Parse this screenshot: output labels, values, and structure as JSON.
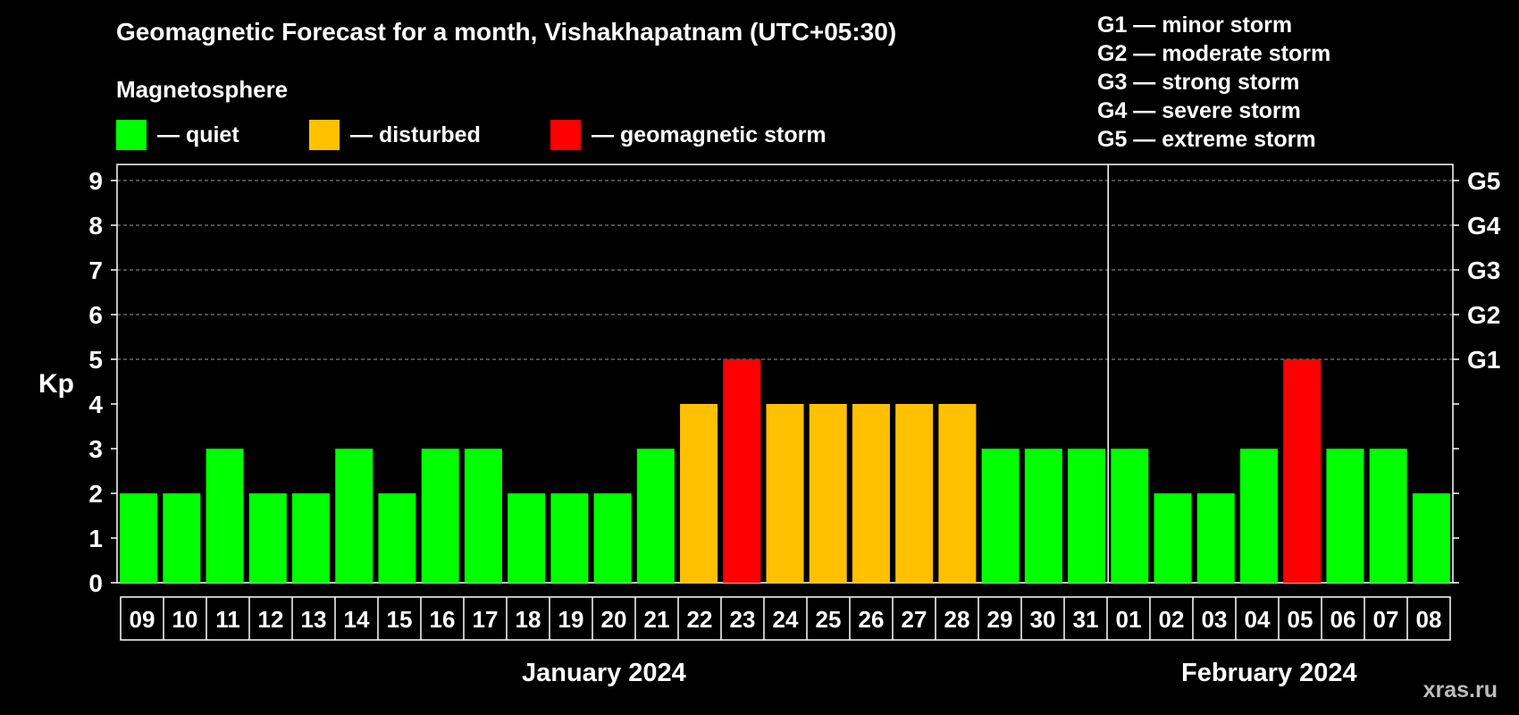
{
  "title": "Geomagnetic Forecast for a month, Vishakhapatnam (UTC+05:30)",
  "magnetosphere_label": "Magnetosphere",
  "legend": [
    {
      "label": "— quiet",
      "color": "#00ff00"
    },
    {
      "label": "— disturbed",
      "color": "#ffc000"
    },
    {
      "label": "— geomagnetic storm",
      "color": "#ff0000"
    }
  ],
  "storm_scale": [
    "G1 — minor storm",
    "G2 — moderate storm",
    "G3 — strong storm",
    "G4 — severe storm",
    "G5 — extreme storm"
  ],
  "months": [
    "January 2024",
    "February 2024"
  ],
  "watermark": "xras.ru",
  "colors": {
    "quiet": "#00ff00",
    "disturbed": "#ffc000",
    "storm": "#ff0000"
  },
  "chart_data": {
    "type": "bar",
    "ylabel": "Kp",
    "ylim": [
      0,
      9
    ],
    "yticks": [
      0,
      1,
      2,
      3,
      4,
      5,
      6,
      7,
      8,
      9
    ],
    "right_axis_labels": [
      {
        "kp": 5,
        "label": "G1"
      },
      {
        "kp": 6,
        "label": "G2"
      },
      {
        "kp": 7,
        "label": "G3"
      },
      {
        "kp": 8,
        "label": "G4"
      },
      {
        "kp": 9,
        "label": "G5"
      }
    ],
    "categories": [
      "09",
      "10",
      "11",
      "12",
      "13",
      "14",
      "15",
      "16",
      "17",
      "18",
      "19",
      "20",
      "21",
      "22",
      "23",
      "24",
      "25",
      "26",
      "27",
      "28",
      "29",
      "30",
      "31",
      "01",
      "02",
      "03",
      "04",
      "05",
      "06",
      "07",
      "08"
    ],
    "values": [
      2,
      2,
      3,
      2,
      2,
      3,
      2,
      3,
      3,
      2,
      2,
      2,
      3,
      4,
      5,
      4,
      4,
      4,
      4,
      4,
      3,
      3,
      3,
      3,
      2,
      2,
      3,
      5,
      3,
      3,
      2
    ],
    "month_split_index": 23
  }
}
